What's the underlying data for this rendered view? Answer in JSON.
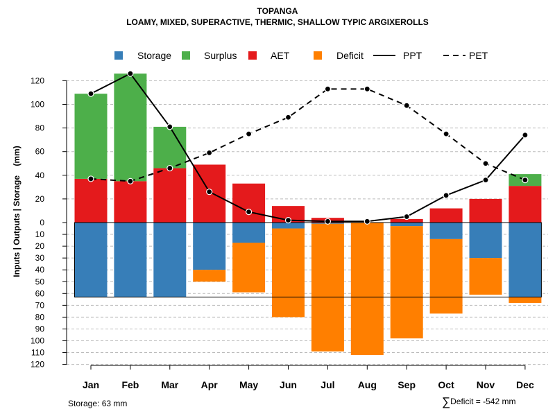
{
  "chart_data": {
    "type": "bar",
    "title": "TOPANGA",
    "subtitle": "LOAMY, MIXED, SUPERACTIVE, THERMIC, SHALLOW TYPIC ARGIXEROLLS",
    "ylabel": "Inputs | Outputs | Storage    (mm)",
    "xlabel": "",
    "ylim": [
      -120,
      130
    ],
    "upper_ticks": [
      0,
      20,
      40,
      60,
      80,
      100,
      120
    ],
    "upper_tick_labels": [
      "0",
      "20",
      "40",
      "60",
      "80",
      "100",
      "120"
    ],
    "lower_ticks": [
      10,
      20,
      30,
      40,
      50,
      60,
      70,
      80,
      90,
      100,
      110,
      120
    ],
    "lower_tick_labels": [
      "10",
      "20",
      "30",
      "40",
      "50",
      "60",
      "70",
      "80",
      "90",
      "100",
      "110",
      "120"
    ],
    "categories": [
      "Jan",
      "Feb",
      "Mar",
      "Apr",
      "May",
      "Jun",
      "Jul",
      "Aug",
      "Sep",
      "Oct",
      "Nov",
      "Dec"
    ],
    "legend": {
      "placement": "top",
      "entries": [
        {
          "name": "Storage",
          "kind": "box",
          "color": "#377EB8"
        },
        {
          "name": "Surplus",
          "kind": "box",
          "color": "#4DAF4A"
        },
        {
          "name": "AET",
          "kind": "box",
          "color": "#E41A1C"
        },
        {
          "name": "Deficit",
          "kind": "box",
          "color": "#FF7F00"
        },
        {
          "name": "PPT",
          "kind": "line-solid",
          "color": "#000000"
        },
        {
          "name": "PET",
          "kind": "line-dashed",
          "color": "#000000"
        }
      ]
    },
    "series": [
      {
        "name": "AET",
        "color": "#E41A1C",
        "values": [
          37,
          35,
          46,
          49,
          33,
          14,
          4,
          0,
          3,
          12,
          20,
          31
        ]
      },
      {
        "name": "Surplus",
        "color": "#4DAF4A",
        "values": [
          72,
          91,
          35,
          0,
          0,
          0,
          0,
          0,
          0,
          0,
          0,
          10
        ]
      },
      {
        "name": "Storage",
        "color": "#377EB8",
        "values": [
          63,
          63,
          63,
          40,
          17,
          5,
          1,
          0,
          3,
          14,
          30,
          63
        ]
      },
      {
        "name": "Deficit",
        "color": "#FF7F00",
        "values": [
          0,
          0,
          0,
          10,
          42,
          75,
          108,
          112,
          95,
          63,
          31,
          5
        ]
      },
      {
        "name": "PPT",
        "color": "#000000",
        "values": [
          109,
          126,
          81,
          26,
          9,
          2,
          1,
          1,
          5,
          23,
          36,
          74
        ]
      },
      {
        "name": "PET",
        "color": "#000000",
        "values": [
          37,
          35,
          46,
          59,
          75,
          89,
          113,
          113,
          99,
          75,
          50,
          36
        ]
      }
    ],
    "storage_capacity": 63,
    "notes": {
      "storage": "Storage: 63 mm",
      "deficit_symbol": "∑",
      "deficit": "Deficit = -542 mm"
    }
  }
}
